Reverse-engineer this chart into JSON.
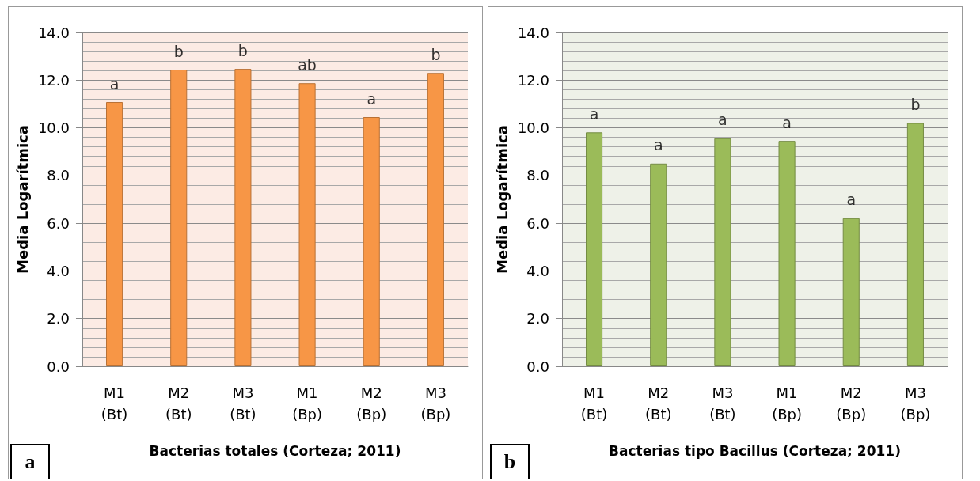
{
  "chart_data": [
    {
      "type": "bar",
      "xlabel": "Bacterias totales (Corteza; 2011)",
      "ylabel": "Media Logarítmica",
      "categories": [
        "M1\n(Bt)",
        "M2\n(Bt)",
        "M3\n(Bt)",
        "M1\n(Bp)",
        "M2\n(Bp)",
        "M3\n(Bp)"
      ],
      "values": [
        11.08,
        12.44,
        12.47,
        11.87,
        10.45,
        12.3
      ],
      "color": "#f79646",
      "ylim": [
        0,
        14
      ],
      "yticks": [
        {
          "value": 0,
          "label": "0.0"
        },
        {
          "value": 2,
          "label": "2.0"
        },
        {
          "value": 4,
          "label": "4.0"
        },
        {
          "value": 6,
          "label": "6.0"
        },
        {
          "value": 8,
          "label": "8.0"
        },
        {
          "value": 10,
          "label": "10.0"
        },
        {
          "value": 12,
          "label": "12.0"
        },
        {
          "value": 14,
          "label": "14.0"
        }
      ],
      "grid": "y",
      "annotations": [
        {
          "text": "a",
          "x": "M1\n(Bt)",
          "y": 11.08
        },
        {
          "text": "b",
          "x": "M2\n(Bt)",
          "y": 12.44
        },
        {
          "text": "b",
          "x": "M3\n(Bt)",
          "y": 12.47
        },
        {
          "text": "ab",
          "x": "M1\n(Bp)",
          "y": 11.87
        },
        {
          "text": "a",
          "x": "M2\n(Bp)",
          "y": 10.45
        },
        {
          "text": "b",
          "x": "M3\n(Bp)",
          "y": 12.3
        },
        "a"
      ]
    },
    {
      "type": "bar",
      "xlabel": "Bacterias tipo Bacillus (Corteza; 2011)",
      "ylabel": "Media Logarítmica",
      "categories": [
        "M1\n(Bt)",
        "M2\n(Bt)",
        "M3\n(Bt)",
        "M1\n(Bp)",
        "M2\n(Bp)",
        "M3\n(Bp)"
      ],
      "values": [
        9.81,
        8.5,
        9.56,
        9.45,
        6.21,
        10.2
      ],
      "color": "#9bbb59",
      "ylim": [
        0,
        14
      ],
      "yticks": [
        {
          "value": 0,
          "label": "0.0"
        },
        {
          "value": 2,
          "label": "2.0"
        },
        {
          "value": 4,
          "label": "4.0"
        },
        {
          "value": 6,
          "label": "6.0"
        },
        {
          "value": 8,
          "label": "8.0"
        },
        {
          "value": 10,
          "label": "10.0"
        },
        {
          "value": 12,
          "label": "12.0"
        },
        {
          "value": 14,
          "label": "14.0"
        }
      ],
      "grid": "y",
      "annotations": [
        {
          "text": "a",
          "x": "M1\n(Bt)",
          "y": 9.81
        },
        {
          "text": "a",
          "x": "M2\n(Bt)",
          "y": 8.5
        },
        {
          "text": "a",
          "x": "M3\n(Bt)",
          "y": 9.56
        },
        {
          "text": "a",
          "x": "M1\n(Bp)",
          "y": 9.45
        },
        {
          "text": "a",
          "x": "M2\n(Bp)",
          "y": 6.21
        },
        {
          "text": "b",
          "x": "M3\n(Bp)",
          "y": 10.2
        },
        "b"
      ]
    }
  ]
}
